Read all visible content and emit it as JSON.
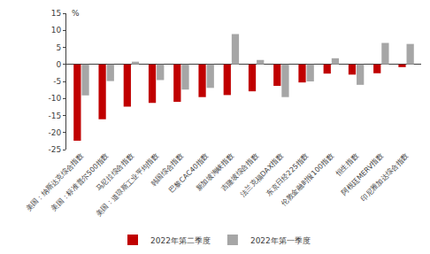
{
  "chart_data": {
    "type": "bar",
    "ylabel": "%",
    "categories": [
      "美国：纳斯达克综合指数",
      "美国：标准普尔500指数",
      "马尼拉综合指数",
      "美国：道琼斯工业平均指数",
      "韩国综合指数",
      "巴黎CAC40指数",
      "新加坡海峡指数",
      "吉隆坡综合指数",
      "法兰克福DAX指数",
      "东京日经225指数",
      "伦敦金融时报100指数",
      "恒生指数",
      "阿根廷MERV指数",
      "印尼雅加达综合指数"
    ],
    "series": [
      {
        "name": "2022年第二季度",
        "color": "#C00000",
        "values": [
          -22.4,
          -16.1,
          -12.4,
          -11.3,
          -11.0,
          -9.6,
          -9.0,
          -7.9,
          -6.3,
          -5.3,
          -2.7,
          -3.0,
          -2.6,
          -0.8
        ]
      },
      {
        "name": "2022年第一季度",
        "color": "#A6A6A6",
        "values": [
          -9.1,
          -4.9,
          0.8,
          -4.6,
          -7.4,
          -6.9,
          8.9,
          1.3,
          -9.6,
          -5.0,
          1.8,
          -6.0,
          6.3,
          6.0
        ]
      }
    ],
    "ylim": [
      -25,
      15
    ],
    "yticks": [
      -25,
      -20,
      -15,
      -10,
      -5,
      0,
      5,
      10,
      15
    ],
    "grid": false,
    "legend": "bottom"
  }
}
